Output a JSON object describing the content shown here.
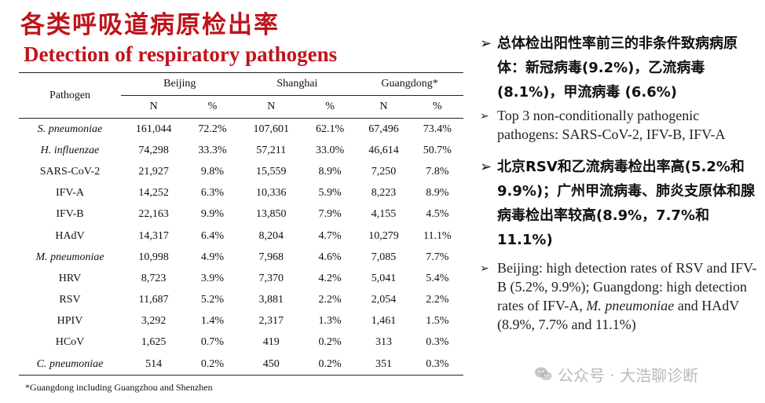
{
  "title_cn": "各类呼吸道病原检出率",
  "title_en": "Detection of respiratory pathogens",
  "table": {
    "pathogen_header": "Pathogen",
    "groups": [
      "Beijing",
      "Shanghai",
      "Guangdong*"
    ],
    "sub_headers": [
      "N",
      "%",
      "N",
      "%",
      "N",
      "%"
    ],
    "rows": [
      {
        "name": "S. pneumoniae",
        "italic": true,
        "cells": [
          "161,044",
          "72.2%",
          "107,601",
          "62.1%",
          "67,496",
          "73.4%"
        ]
      },
      {
        "name": "H. influenzae",
        "italic": true,
        "cells": [
          "74,298",
          "33.3%",
          "57,211",
          "33.0%",
          "46,614",
          "50.7%"
        ]
      },
      {
        "name": "SARS-CoV-2",
        "italic": false,
        "cells": [
          "21,927",
          "9.8%",
          "15,559",
          "8.9%",
          "7,250",
          "7.8%"
        ]
      },
      {
        "name": "IFV-A",
        "italic": false,
        "cells": [
          "14,252",
          "6.3%",
          "10,336",
          "5.9%",
          "8,223",
          "8.9%"
        ]
      },
      {
        "name": "IFV-B",
        "italic": false,
        "cells": [
          "22,163",
          "9.9%",
          "13,850",
          "7.9%",
          "4,155",
          "4.5%"
        ]
      },
      {
        "name": "HAdV",
        "italic": false,
        "cells": [
          "14,317",
          "6.4%",
          "8,204",
          "4.7%",
          "10,279",
          "11.1%"
        ]
      },
      {
        "name": "M. pneumoniae",
        "italic": true,
        "cells": [
          "10,998",
          "4.9%",
          "7,968",
          "4.6%",
          "7,085",
          "7.7%"
        ]
      },
      {
        "name": "HRV",
        "italic": false,
        "cells": [
          "8,723",
          "3.9%",
          "7,370",
          "4.2%",
          "5,041",
          "5.4%"
        ]
      },
      {
        "name": "RSV",
        "italic": false,
        "cells": [
          "11,687",
          "5.2%",
          "3,881",
          "2.2%",
          "2,054",
          "2.2%"
        ]
      },
      {
        "name": "HPIV",
        "italic": false,
        "cells": [
          "3,292",
          "1.4%",
          "2,317",
          "1.3%",
          "1,461",
          "1.5%"
        ]
      },
      {
        "name": "HCoV",
        "italic": false,
        "cells": [
          "1,625",
          "0.7%",
          "419",
          "0.2%",
          "313",
          "0.3%"
        ]
      },
      {
        "name": "C. pneumoniae",
        "italic": true,
        "cells": [
          "514",
          "0.2%",
          "450",
          "0.2%",
          "351",
          "0.3%"
        ]
      }
    ]
  },
  "footnote": "*Guangdong including Guangzhou and Shenzhen",
  "bullets": [
    {
      "marker": "➢",
      "style": "cn",
      "text": "总体检出阳性率前三的非条件致病病原体：新冠病毒(9.2%)，乙流病毒 (8.1%)，甲流病毒 (6.6%)"
    },
    {
      "marker": "➢",
      "style": "en",
      "text": "Top 3 non-conditionally pathogenic pathogens: SARS-CoV-2, IFV-B, IFV-A"
    },
    {
      "marker": "➢",
      "style": "cn",
      "text": "北京RSV和乙流病毒检出率高(5.2%和9.9%)；广州甲流病毒、肺炎支原体和腺病毒检出率较高(8.9%，7.7%和11.1%)"
    },
    {
      "marker": "➢",
      "style": "en",
      "parts": [
        {
          "t": "Beijing: high detection rates of RSV and IFV-B (5.2%, 9.9%); Guangdong: high detection rates of IFV-A, ",
          "i": false
        },
        {
          "t": "M. pneumoniae",
          "i": true
        },
        {
          "t": " and HAdV (8.9%, 7.7% and 11.1%)",
          "i": false
        }
      ]
    }
  ],
  "watermark": {
    "icon": "wechat-icon",
    "text": "公众号 · 大浩聊诊断"
  }
}
